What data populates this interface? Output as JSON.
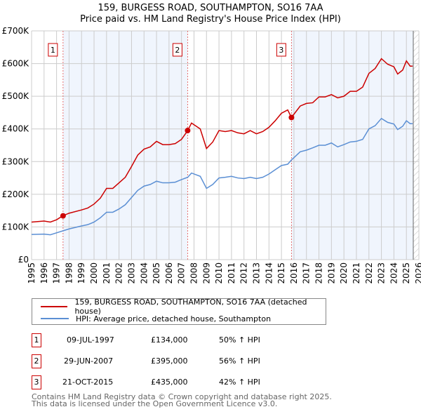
{
  "chart_data": {
    "type": "line",
    "title": "159, BURGESS ROAD, SOUTHAMPTON, SO16 7AA",
    "subtitle": "Price paid vs. HM Land Registry's House Price Index (HPI)",
    "ylim": [
      0,
      700000
    ],
    "xlim": [
      1995,
      2026
    ],
    "yticks": [
      {
        "v": 0,
        "label": "£0"
      },
      {
        "v": 100000,
        "label": "£100K"
      },
      {
        "v": 200000,
        "label": "£200K"
      },
      {
        "v": 300000,
        "label": "£300K"
      },
      {
        "v": 400000,
        "label": "£400K"
      },
      {
        "v": 500000,
        "label": "£500K"
      },
      {
        "v": 600000,
        "label": "£600K"
      },
      {
        "v": 700000,
        "label": "£700K"
      }
    ],
    "xticks": [
      "1995",
      "1996",
      "1997",
      "1998",
      "1999",
      "2000",
      "2001",
      "2002",
      "2003",
      "2004",
      "2005",
      "2006",
      "2007",
      "2008",
      "2009",
      "2010",
      "2011",
      "2012",
      "2013",
      "2014",
      "2015",
      "2016",
      "2017",
      "2018",
      "2019",
      "2020",
      "2021",
      "2022",
      "2023",
      "2024",
      "2025",
      "2026"
    ],
    "x": [
      1995,
      1996,
      1996.5,
      1997,
      1997.5,
      1998,
      1999,
      1999.5,
      2000,
      2000.5,
      2001,
      2001.5,
      2002,
      2002.5,
      2003,
      2003.5,
      2004,
      2004.5,
      2005,
      2005.5,
      2006,
      2006.5,
      2007,
      2007.5,
      2007.8,
      2008.5,
      2009,
      2009.5,
      2010,
      2010.5,
      2011,
      2011.5,
      2012,
      2012.5,
      2013,
      2013.5,
      2014,
      2014.5,
      2015,
      2015.5,
      2015.8,
      2016,
      2016.5,
      2017,
      2017.5,
      2018,
      2018.5,
      2019,
      2019.5,
      2020,
      2020.5,
      2021,
      2021.5,
      2022,
      2022.5,
      2023,
      2023.5,
      2024,
      2024.3,
      2024.7,
      2025,
      2025.3,
      2025.5
    ],
    "series": [
      {
        "name": "159, BURGESS ROAD, SOUTHAMPTON, SO16 7AA (detached house)",
        "color": "#cc0000",
        "values": [
          115,
          118,
          115,
          122,
          134,
          142,
          152,
          158,
          170,
          188,
          218,
          218,
          235,
          252,
          285,
          320,
          338,
          345,
          362,
          352,
          352,
          355,
          368,
          395,
          418,
          400,
          340,
          360,
          395,
          392,
          395,
          388,
          385,
          395,
          385,
          392,
          405,
          425,
          448,
          458,
          435,
          445,
          470,
          478,
          480,
          498,
          498,
          505,
          495,
          500,
          515,
          515,
          528,
          570,
          585,
          615,
          598,
          590,
          568,
          580,
          608,
          592,
          592
        ]
      },
      {
        "name": "HPI: Average price, detached house, Southampton",
        "color": "#5b8fd4",
        "values": [
          77,
          78,
          76,
          82,
          88,
          94,
          103,
          107,
          115,
          128,
          145,
          145,
          155,
          168,
          190,
          212,
          225,
          230,
          240,
          235,
          235,
          237,
          245,
          252,
          265,
          255,
          218,
          230,
          250,
          252,
          255,
          250,
          248,
          252,
          248,
          252,
          262,
          275,
          288,
          292,
          305,
          312,
          330,
          335,
          342,
          350,
          350,
          357,
          345,
          352,
          360,
          362,
          368,
          400,
          410,
          432,
          420,
          415,
          398,
          408,
          425,
          416,
          416
        ]
      }
    ],
    "value_unit": "thousands GBP",
    "sales": [
      {
        "n": "1",
        "x": 1997.52,
        "date": "09-JUL-1997",
        "price": "£134,000",
        "value": 134,
        "hpi": "50% ↑ HPI"
      },
      {
        "n": "2",
        "x": 2007.49,
        "date": "29-JUN-2007",
        "price": "£395,000",
        "value": 395,
        "hpi": "56% ↑ HPI"
      },
      {
        "n": "3",
        "x": 2015.8,
        "date": "21-OCT-2015",
        "price": "£435,000",
        "value": 435,
        "hpi": "42% ↑ HPI"
      }
    ],
    "legend_position": "below"
  },
  "footer": [
    "Contains HM Land Registry data © Crown copyright and database right 2025.",
    "This data is licensed under the Open Government Licence v3.0."
  ]
}
